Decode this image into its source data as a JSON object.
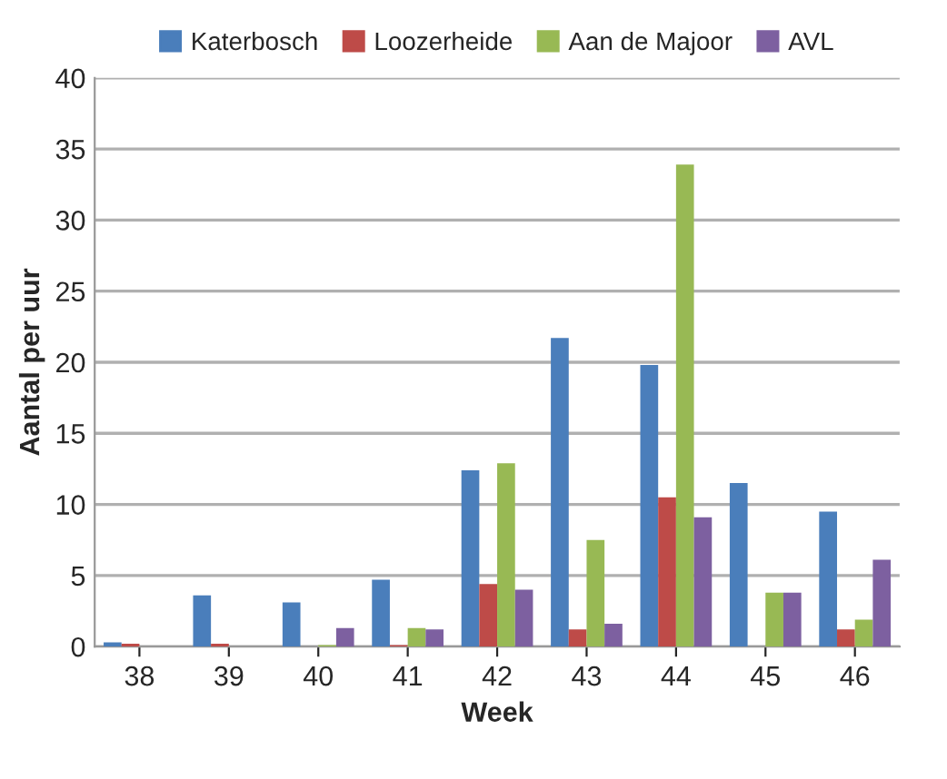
{
  "chart_data": {
    "type": "bar",
    "xlabel": "Week",
    "ylabel": "Aantal per uur",
    "categories": [
      "38",
      "39",
      "40",
      "41",
      "42",
      "43",
      "44",
      "45",
      "46"
    ],
    "series": [
      {
        "name": "Katerbosch",
        "color": "#4a7ebb",
        "values": [
          0.3,
          3.6,
          3.1,
          4.7,
          12.4,
          21.7,
          19.8,
          11.5,
          9.5
        ]
      },
      {
        "name": "Loozerheide",
        "color": "#be4b48",
        "values": [
          0.2,
          0.2,
          0,
          0.1,
          4.4,
          1.2,
          10.5,
          0,
          1.2
        ]
      },
      {
        "name": "Aan de Majoor",
        "color": "#98b954",
        "values": [
          0,
          0,
          0.1,
          1.3,
          12.9,
          7.5,
          33.9,
          3.8,
          1.9
        ]
      },
      {
        "name": "AVL",
        "color": "#7d60a0",
        "values": [
          0,
          0,
          1.3,
          1.2,
          4.0,
          1.6,
          9.1,
          3.8,
          6.1
        ]
      }
    ],
    "ylim": [
      0,
      40
    ],
    "yticks": [
      0,
      5,
      10,
      15,
      20,
      25,
      30,
      35,
      40
    ],
    "grid": "y",
    "legend": "top"
  }
}
